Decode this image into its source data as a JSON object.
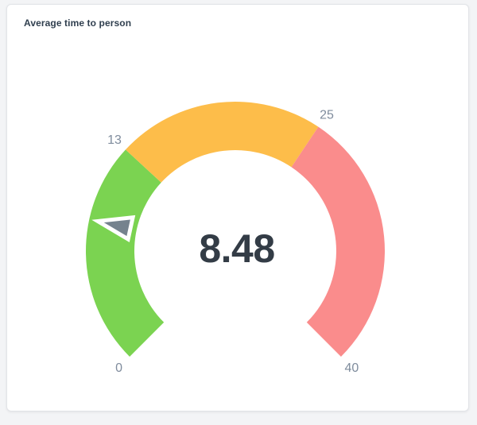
{
  "card": {
    "title": "Average time to person"
  },
  "chart_data": {
    "type": "gauge",
    "title": "Average time to person",
    "value": 8.48,
    "value_display": "8.48",
    "min": 0,
    "max": 40,
    "start_angle_deg": 225,
    "end_angle_deg": -45,
    "segments": [
      {
        "name": "good",
        "from": 0,
        "to": 13,
        "color": "#7bd351"
      },
      {
        "name": "warning",
        "from": 13,
        "to": 25,
        "color": "#fdbd4a"
      },
      {
        "name": "critical",
        "from": 25,
        "to": 40,
        "color": "#fa8c8c"
      }
    ],
    "axis_labels": [
      {
        "value": 0,
        "text": "0"
      },
      {
        "value": 13,
        "text": "13"
      },
      {
        "value": 25,
        "text": "25"
      },
      {
        "value": 40,
        "text": "40"
      }
    ],
    "colors": {
      "needle": "#75828e",
      "needle_outline": "#ffffff",
      "value_text": "#333c46",
      "axis_label_text": "#7f8c9d"
    }
  }
}
